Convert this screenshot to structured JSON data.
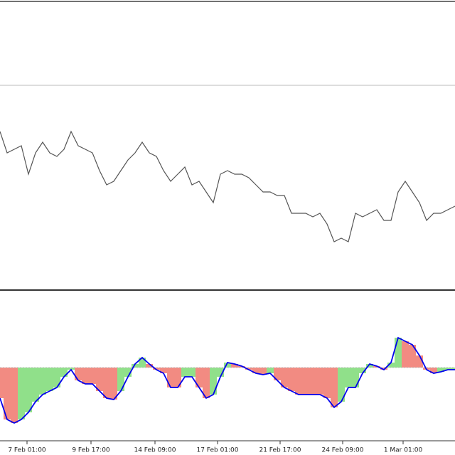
{
  "chart_data": [
    {
      "type": "line",
      "color": "#555555",
      "xlim": [
        0,
        64
      ],
      "ylim": [
        0,
        288
      ],
      "values": [
        223,
        193,
        198,
        203,
        163,
        193,
        208,
        193,
        188,
        198,
        223,
        203,
        198,
        193,
        168,
        148,
        153,
        168,
        183,
        193,
        208,
        193,
        188,
        168,
        153,
        163,
        173,
        148,
        153,
        138,
        123,
        163,
        168,
        163,
        163,
        158,
        148,
        138,
        138,
        133,
        133,
        108,
        108,
        108,
        103,
        108,
        93,
        68,
        73,
        68,
        108,
        103,
        108,
        113,
        98,
        98,
        138,
        153,
        138,
        123,
        98,
        108,
        108,
        113,
        118
      ]
    },
    {
      "type": "bar",
      "xlim": [
        0,
        64
      ],
      "ylim": [
        -98,
        97
      ],
      "values": [
        -43,
        -73,
        -78,
        -73,
        -63,
        -48,
        -38,
        -33,
        -28,
        -13,
        -3,
        -18,
        -23,
        -23,
        -33,
        -43,
        -45,
        -33,
        -13,
        5,
        14,
        5,
        -3,
        -8,
        -28,
        -28,
        -13,
        -13,
        -28,
        -43,
        -38,
        -13,
        7,
        5,
        2,
        -3,
        -8,
        -10,
        -8,
        -18,
        -28,
        -33,
        -38,
        -38,
        -38,
        -38,
        -43,
        -56,
        -48,
        -28,
        -28,
        -8,
        5,
        2,
        -3,
        7,
        42,
        37,
        32,
        17,
        -3,
        -8,
        -6,
        -3,
        -3
      ],
      "bar_colors": [
        "#f28b82",
        "#f28b82",
        "#f28b82",
        "#90e08a",
        "#90e08a",
        "#90e08a",
        "#90e08a",
        "#90e08a",
        "#90e08a",
        "#90e08a",
        "#90e08a",
        "#f28b82",
        "#f28b82",
        "#f28b82",
        "#f28b82",
        "#f28b82",
        "#f28b82",
        "#90e08a",
        "#90e08a",
        "#90e08a",
        "#90e08a",
        "#f28b82",
        "#f28b82",
        "#f28b82",
        "#f28b82",
        "#f28b82",
        "#90e08a",
        "#90e08a",
        "#f28b82",
        "#f28b82",
        "#90e08a",
        "#90e08a",
        "#90e08a",
        "#f28b82",
        "#f28b82",
        "#f28b82",
        "#f28b82",
        "#f28b82",
        "#90e08a",
        "#f28b82",
        "#f28b82",
        "#f28b82",
        "#f28b82",
        "#f28b82",
        "#f28b82",
        "#f28b82",
        "#f28b82",
        "#f28b82",
        "#90e08a",
        "#90e08a",
        "#90e08a",
        "#90e08a",
        "#90e08a",
        "#f28b82",
        "#f28b82",
        "#90e08a",
        "#90e08a",
        "#f28b82",
        "#f28b82",
        "#f28b82",
        "#f28b82",
        "#f28b82",
        "#90e08a",
        "#90e08a",
        "#90e08a"
      ],
      "line_values": [
        -43,
        -73,
        -78,
        -73,
        -63,
        -48,
        -38,
        -33,
        -28,
        -13,
        -3,
        -18,
        -23,
        -23,
        -33,
        -43,
        -45,
        -33,
        -13,
        5,
        14,
        5,
        -3,
        -8,
        -28,
        -28,
        -13,
        -13,
        -28,
        -43,
        -38,
        -13,
        7,
        5,
        2,
        -3,
        -8,
        -10,
        -8,
        -18,
        -28,
        -33,
        -38,
        -38,
        -38,
        -38,
        -43,
        -56,
        -48,
        -28,
        -28,
        -8,
        5,
        2,
        -3,
        7,
        42,
        37,
        32,
        17,
        -3,
        -8,
        -6,
        -3,
        -3
      ],
      "line_color": "#0000ee",
      "xticks": [
        {
          "value": 3.8,
          "label": "7 Feb 01:00"
        },
        {
          "value": 12.8,
          "label": "9 Feb 17:00"
        },
        {
          "value": 21.8,
          "label": "14 Feb 09:00"
        },
        {
          "value": 30.6,
          "label": "17 Feb 01:00"
        },
        {
          "value": 39.4,
          "label": "21 Feb 17:00"
        },
        {
          "value": 48.2,
          "label": "24 Feb 09:00"
        },
        {
          "value": 56.7,
          "label": "1 Mar 01:00"
        }
      ]
    }
  ]
}
